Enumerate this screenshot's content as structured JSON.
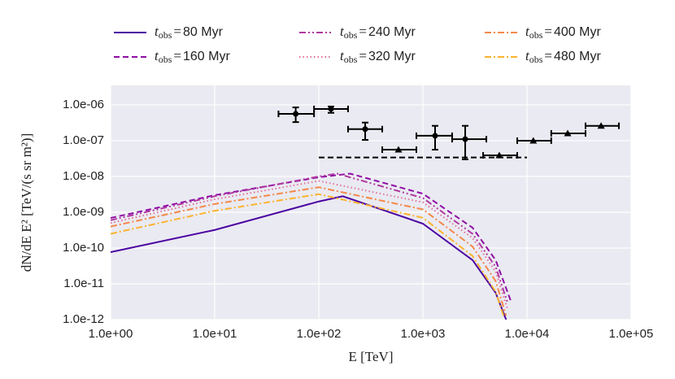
{
  "chart_data": {
    "type": "line",
    "xscale": "log",
    "yscale": "log",
    "xlim": [
      1,
      100000
    ],
    "ylim": [
      1e-12,
      3.5e-06
    ],
    "xticks": [
      {
        "value": 1,
        "label": "1.0e+00"
      },
      {
        "value": 10,
        "label": "1.0e+01"
      },
      {
        "value": 100,
        "label": "1.0e+02"
      },
      {
        "value": 1000,
        "label": "1.0e+03"
      },
      {
        "value": 10000,
        "label": "1.0e+04"
      },
      {
        "value": 100000,
        "label": "1.0e+05"
      }
    ],
    "yticks": [
      {
        "value": 1e-12,
        "label": "1.0e-12"
      },
      {
        "value": 1e-11,
        "label": "1.0e-11"
      },
      {
        "value": 1e-10,
        "label": "1.0e-10"
      },
      {
        "value": 1e-09,
        "label": "1.0e-09"
      },
      {
        "value": 1e-08,
        "label": "1.0e-08"
      },
      {
        "value": 1e-07,
        "label": "1.0e-07"
      },
      {
        "value": 1e-06,
        "label": "1.0e-06"
      }
    ],
    "grid": true,
    "xlabel": "E [TeV]",
    "ylabel": "dN/dE E² [TeV/(s sr m²)]",
    "legend_prefix": {
      "symbol": "t",
      "subscript": "obs",
      "relation": "="
    },
    "series": [
      {
        "name": "80 Myr",
        "color": "#4b03a1",
        "linestyle": "solid",
        "x": [
          1,
          10,
          100,
          170,
          1000,
          3000,
          5000,
          6300
        ],
        "values": [
          7.7e-11,
          3.2e-10,
          2e-09,
          2.8e-09,
          4.8e-10,
          4.6e-11,
          5.6e-12,
          1e-12
        ]
      },
      {
        "name": "160 Myr",
        "color": "#8f0da4",
        "linestyle": "dashed",
        "x": [
          1,
          10,
          100,
          200,
          1000,
          3000,
          5000,
          7000
        ],
        "values": [
          6.9e-10,
          3e-09,
          9.5e-09,
          1.2e-08,
          3.3e-09,
          3.7e-10,
          4.6e-11,
          3.3e-12
        ]
      },
      {
        "name": "240 Myr",
        "color": "#b03aa0",
        "linestyle": "dashdotdot",
        "x": [
          1,
          10,
          100,
          150,
          1000,
          3000,
          5000,
          6500
        ],
        "values": [
          6e-10,
          2.8e-09,
          1e-08,
          1.2e-08,
          2.5e-09,
          2.5e-10,
          3e-11,
          3e-12
        ]
      },
      {
        "name": "320 Myr",
        "color": "#e0709a",
        "linestyle": "dotted",
        "x": [
          1,
          10,
          100,
          1000,
          3000,
          5000,
          6500
        ],
        "values": [
          5e-10,
          2.3e-09,
          7.5e-09,
          1.9e-09,
          1.9e-10,
          2.2e-11,
          2e-12
        ]
      },
      {
        "name": "400 Myr",
        "color": "#f48849",
        "linestyle": "dashdot",
        "x": [
          1,
          10,
          100,
          1000,
          3000,
          5000,
          6300
        ],
        "values": [
          4e-10,
          1.7e-09,
          5e-09,
          1.2e-09,
          1.1e-10,
          1.2e-11,
          1.3e-12
        ]
      },
      {
        "name": "480 Myr",
        "color": "#fbb32f",
        "linestyle": "dashdot",
        "x": [
          1,
          10,
          100,
          1000,
          3000,
          5000,
          6000
        ],
        "values": [
          2.5e-10,
          1.1e-09,
          3.2e-09,
          7e-10,
          6e-11,
          6e-12,
          1.2e-12
        ]
      }
    ],
    "points": [
      {
        "marker": "circle",
        "color": "#000000",
        "x": [
          60,
          131,
          279,
          1310,
          2550
        ],
        "values": [
          5.6e-07,
          7.7e-07,
          2.1e-07,
          1.37e-07,
          1.1e-07
        ],
        "x_low": [
          41,
          90,
          191,
          866,
          1910
        ],
        "x_high": [
          90,
          191,
          407,
          1910,
          4070
        ],
        "y_low": [
          3.3e-07,
          6e-07,
          1.05e-07,
          5.6e-08,
          3e-08
        ],
        "y_high": [
          8.5e-07,
          9e-07,
          3.2e-07,
          2.6e-07,
          2.6e-07
        ]
      },
      {
        "marker": "triangle",
        "color": "#000000",
        "x": [
          583,
          5420,
          11500,
          24600,
          51500
        ],
        "values": [
          5.6e-08,
          3.9e-08,
          1e-07,
          1.6e-07,
          2.6e-07
        ],
        "x_low": [
          407,
          3790,
          8060,
          17100,
          36500
        ],
        "x_high": [
          866,
          8060,
          17100,
          36500,
          76400
        ]
      }
    ],
    "reference_line": {
      "color": "#000000",
      "linestyle": "dashed",
      "x": [
        100,
        10000
      ],
      "values": [
        3.4e-08,
        3.4e-08
      ]
    }
  }
}
